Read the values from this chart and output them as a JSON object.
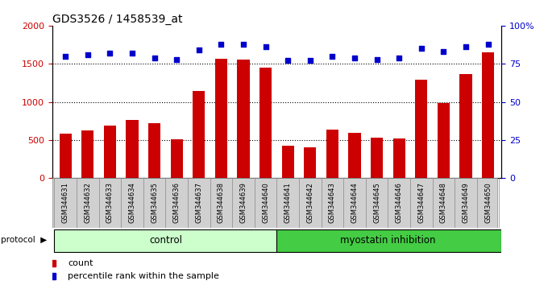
{
  "title": "GDS3526 / 1458539_at",
  "samples": [
    "GSM344631",
    "GSM344632",
    "GSM344633",
    "GSM344634",
    "GSM344635",
    "GSM344636",
    "GSM344637",
    "GSM344638",
    "GSM344639",
    "GSM344640",
    "GSM344641",
    "GSM344642",
    "GSM344643",
    "GSM344644",
    "GSM344645",
    "GSM344646",
    "GSM344647",
    "GSM344648",
    "GSM344649",
    "GSM344650"
  ],
  "counts": [
    580,
    630,
    690,
    760,
    720,
    510,
    1140,
    1570,
    1560,
    1450,
    420,
    400,
    640,
    590,
    530,
    520,
    1290,
    980,
    1360,
    1650
  ],
  "percentile": [
    80,
    81,
    82,
    82,
    79,
    78,
    84,
    88,
    88,
    86,
    77,
    77,
    80,
    79,
    78,
    79,
    85,
    83,
    86,
    88
  ],
  "control_count": 10,
  "bar_color": "#cc0000",
  "dot_color": "#0000cc",
  "light_green": "#ccffcc",
  "dark_green": "#44cc44",
  "ylim_left": [
    0,
    2000
  ],
  "ylim_right": [
    0,
    100
  ],
  "yticks_left": [
    0,
    500,
    1000,
    1500,
    2000
  ],
  "yticks_right": [
    0,
    25,
    50,
    75,
    100
  ],
  "grid_color": "#888888",
  "label_bg": "#d0d0d0"
}
